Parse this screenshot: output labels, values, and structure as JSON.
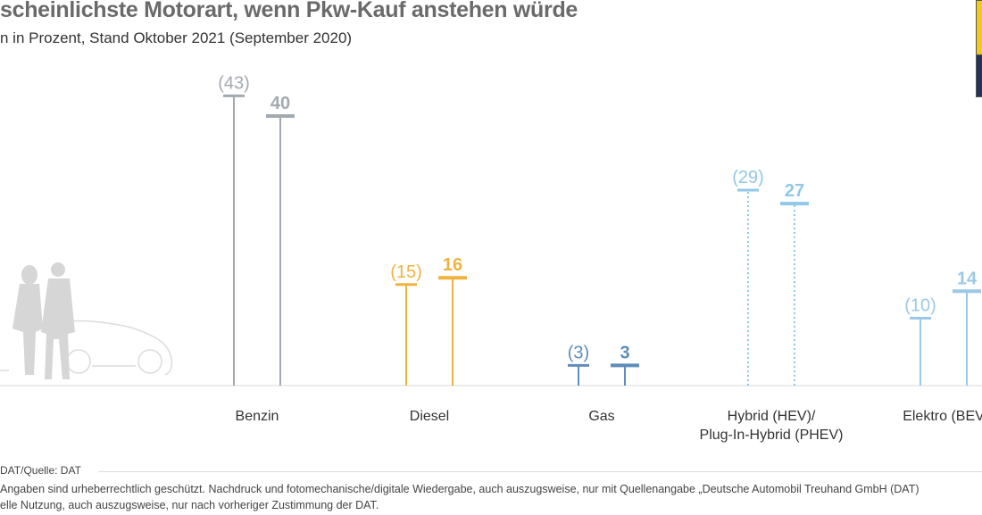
{
  "title": "scheinlichste Motorart, wenn Pkw-Kauf anstehen würde",
  "subtitle": "n in Prozent, Stand Oktober 2021 (September 2020)",
  "source": "DAT/Quelle: DAT",
  "copyright_lines": [
    "Angaben sind urheberrechtlich geschützt. Nachdruck und fotomechanische/digitale Wiedergabe, auch auszugsweise, nur mit Quellenangabe „Deutsche Automobil Treuhand GmbH (DAT)",
    "elle Nutzung, auch auszugsweise, nur nach vorheriger Zustimmung der DAT."
  ],
  "chart_data": {
    "type": "lollipop",
    "title": "scheinlichste Motorart, wenn Pkw-Kauf anstehen würde",
    "subtitle": "n in Prozent, Stand Oktober 2021 (September 2020)",
    "unit": "Prozent",
    "ylim": [
      0,
      45
    ],
    "grid": false,
    "categories": [
      {
        "label": "Benzin",
        "label2": "",
        "color": "#a3a9b0",
        "dotted": false
      },
      {
        "label": "Diesel",
        "label2": "",
        "color": "#f0b33e",
        "dotted": false
      },
      {
        "label": "Gas",
        "label2": "",
        "color": "#5e8dba",
        "dotted": false
      },
      {
        "label": "Hybrid (HEV)/",
        "label2": "Plug-In-Hybrid (PHEV)",
        "color": "#91c7e8",
        "dotted": true
      },
      {
        "label": "Elektro (BEV",
        "label2": "",
        "color": "#9cc8e8",
        "dotted": false
      }
    ],
    "series": [
      {
        "name": "September 2020",
        "values": [
          43,
          15,
          3,
          29,
          10
        ]
      },
      {
        "name": "Oktober 2021",
        "values": [
          40,
          16,
          3,
          27,
          14
        ]
      }
    ]
  }
}
